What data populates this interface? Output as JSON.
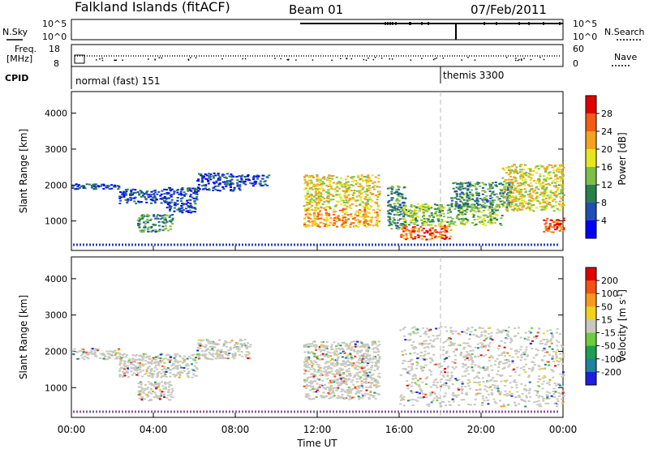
{
  "header": {
    "station": "Falkland Islands (fitACF)",
    "beam": "Beam 01",
    "date": "07/Feb/2011"
  },
  "aux_panels": {
    "left_labels": {
      "nsky": "N.Sky",
      "nsky_ticks": [
        "10^5",
        "10^0"
      ],
      "freq": "Freq.",
      "freq_unit": "[MHz]",
      "freq_ticks": [
        "18",
        "8"
      ],
      "cpid": "CPID"
    },
    "right_labels": {
      "nsearch": "N.Search",
      "nsearch_ticks": [
        "10^5",
        "10^0"
      ],
      "nave": "Nave",
      "nave_ticks": [
        "60",
        "0"
      ]
    },
    "cpid_entries": [
      {
        "label": "normal (fast) 151",
        "start_hour": 0
      },
      {
        "label": "themis 3300",
        "start_hour": 18.5
      }
    ]
  },
  "chart_data": [
    {
      "type": "heatmap",
      "panel": "power",
      "xlabel": "",
      "ylabel": "Slant Range [km]",
      "xlim": [
        0,
        24
      ],
      "ylim": [
        180,
        4600
      ],
      "yticks": [
        1000,
        2000,
        3000,
        4000
      ],
      "colorbar": {
        "label": "Power [dB]",
        "ticks": [
          "4",
          "8",
          "12",
          "16",
          "20",
          "24",
          "28"
        ],
        "colors": [
          "#0000ff",
          "#1f4fb5",
          "#2a7f4f",
          "#7cbf4a",
          "#e6e61e",
          "#f5a21e",
          "#f55a14",
          "#e00000"
        ]
      },
      "regions": [
        {
          "x": [
            0.0,
            2.3
          ],
          "y": [
            1900,
            2050
          ],
          "level": 1
        },
        {
          "x": [
            2.3,
            4.6
          ],
          "y": [
            1500,
            1900
          ],
          "level": 1
        },
        {
          "x": [
            4.6,
            6.1
          ],
          "y": [
            1250,
            1950
          ],
          "level": 1
        },
        {
          "x": [
            6.1,
            8.2
          ],
          "y": [
            1850,
            2350
          ],
          "level": 1
        },
        {
          "x": [
            8.2,
            9.6
          ],
          "y": [
            2000,
            2300
          ],
          "level": 1
        },
        {
          "x": [
            3.2,
            4.9
          ],
          "y": [
            700,
            1200
          ],
          "level": 2
        },
        {
          "x": [
            11.3,
            15.0
          ],
          "y": [
            850,
            1400
          ],
          "level": 5
        },
        {
          "x": [
            11.3,
            15.0
          ],
          "y": [
            1400,
            2300
          ],
          "level": 4
        },
        {
          "x": [
            15.4,
            16.3
          ],
          "y": [
            800,
            2000
          ],
          "level": 2
        },
        {
          "x": [
            16.0,
            18.5
          ],
          "y": [
            500,
            900
          ],
          "level": 6
        },
        {
          "x": [
            16.0,
            21.0
          ],
          "y": [
            900,
            1500
          ],
          "level": 3
        },
        {
          "x": [
            18.5,
            21.5
          ],
          "y": [
            1400,
            2100
          ],
          "level": 2
        },
        {
          "x": [
            21.0,
            24.0
          ],
          "y": [
            1300,
            2600
          ],
          "level": 4
        },
        {
          "x": [
            23.0,
            24.0
          ],
          "y": [
            700,
            1100
          ],
          "level": 6
        }
      ]
    },
    {
      "type": "heatmap",
      "panel": "velocity",
      "xlabel": "Time UT",
      "ylabel": "Slant Range [km]",
      "xlim": [
        0,
        24
      ],
      "ylim": [
        180,
        4600
      ],
      "xticks": [
        "00:00",
        "04:00",
        "08:00",
        "12:00",
        "16:00",
        "20:00",
        "00:00"
      ],
      "yticks": [
        1000,
        2000,
        3000,
        4000
      ],
      "colorbar": {
        "label": "Velocity [m s^-1]",
        "ticks": [
          "200",
          "100",
          "50",
          "15",
          "-15",
          "-50",
          "-100",
          "-200"
        ],
        "colors": [
          "#1e1ee1",
          "#1e82a0",
          "#1e9e50",
          "#6ecb3a",
          "#c8c8c0",
          "#f0d21e",
          "#f59a1e",
          "#f55014",
          "#e00000"
        ]
      },
      "regions": [
        {
          "x": [
            0.0,
            2.3
          ],
          "y": [
            1800,
            2100
          ],
          "level": "ground"
        },
        {
          "x": [
            2.3,
            6.1
          ],
          "y": [
            1300,
            1950
          ],
          "level": "ground"
        },
        {
          "x": [
            6.1,
            8.7
          ],
          "y": [
            1800,
            2350
          ],
          "level": "ground"
        },
        {
          "x": [
            3.2,
            4.9
          ],
          "y": [
            650,
            1200
          ],
          "level": "ground"
        },
        {
          "x": [
            11.3,
            15.0
          ],
          "y": [
            700,
            2300
          ],
          "level": "ground"
        },
        {
          "x": [
            16.0,
            24.0
          ],
          "y": [
            500,
            2700
          ],
          "level": "ground"
        }
      ]
    }
  ]
}
